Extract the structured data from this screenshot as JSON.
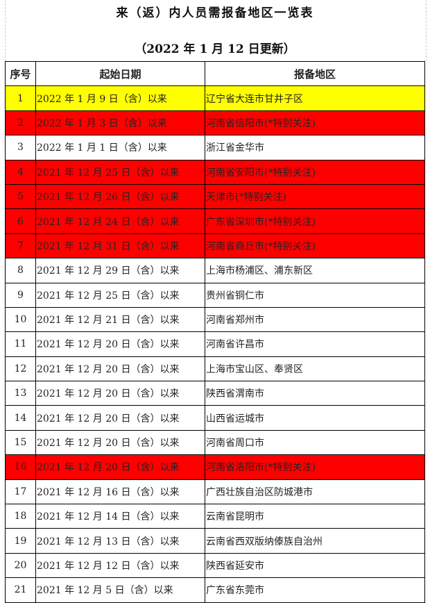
{
  "title": "来（返）内人员需报备地区一览表",
  "subtitle": "（2022 年 1 月 12 日更新）",
  "colors": {
    "yellow": "#ffff00",
    "red": "#ff0000"
  },
  "headers": {
    "no": "序号",
    "date": "起始日期",
    "region": "报备地区"
  },
  "rows": [
    {
      "no": "1",
      "date": "2022 年 1 月 9 日（含）以来",
      "region": "辽宁省大连市甘井子区",
      "highlight": "yellow"
    },
    {
      "no": "2",
      "date": "2022 年 1 月 3 日（含）以来",
      "region": "河南省信阳市(*特别关注)",
      "highlight": "red"
    },
    {
      "no": "3",
      "date": "2022 年 1 月 1 日（含）以来",
      "region": "浙江省金华市",
      "highlight": ""
    },
    {
      "no": "4",
      "date": "2021 年 12 月 25 日（含）以来",
      "region": "河南省安阳市(*特别关注)",
      "highlight": "red"
    },
    {
      "no": "5",
      "date": "2021 年 12 月 26 日（含）以来",
      "region": "天津市(*特别关注)",
      "highlight": "red"
    },
    {
      "no": "6",
      "date": "2021 年 12 月 24 日（含）以来",
      "region": "广东省深圳市(*特别关注)",
      "highlight": "red"
    },
    {
      "no": "7",
      "date": "2021 年 12 月 31 日（含）以来",
      "region": "河南省商丘市(*特别关注)",
      "highlight": "red"
    },
    {
      "no": "8",
      "date": "2021 年 12 月 29 日（含）以来",
      "region": "上海市杨浦区、浦东新区",
      "highlight": ""
    },
    {
      "no": "9",
      "date": "2021 年 12 月 25 日（含）以来",
      "region": "贵州省铜仁市",
      "highlight": ""
    },
    {
      "no": "10",
      "date": "2021 年 12 月 21 日（含）以来",
      "region": "河南省郑州市",
      "highlight": ""
    },
    {
      "no": "11",
      "date": "2021 年 12 月 20 日（含）以来",
      "region": "河南省许昌市",
      "highlight": ""
    },
    {
      "no": "12",
      "date": "2021 年 12 月 20 日（含）以来",
      "region": "上海市宝山区、奉贤区",
      "highlight": ""
    },
    {
      "no": "13",
      "date": "2021 年 12 月 20 日（含）以来",
      "region": "陕西省渭南市",
      "highlight": ""
    },
    {
      "no": "14",
      "date": "2021 年 12 月 20 日（含）以来",
      "region": "山西省运城市",
      "highlight": ""
    },
    {
      "no": "15",
      "date": "2021 年 12 月 20 日（含）以来",
      "region": "河南省周口市",
      "highlight": ""
    },
    {
      "no": "16",
      "date": "2021 年 12 月 20 日（含）以来",
      "region": "河南省洛阳市(*特别关注)",
      "highlight": "red"
    },
    {
      "no": "17",
      "date": "2021 年 12 月 16 日（含）以来",
      "region": "广西壮族自治区防城港市",
      "highlight": ""
    },
    {
      "no": "18",
      "date": "2021 年 12 月 14 日（含）以来",
      "region": "云南省昆明市",
      "highlight": ""
    },
    {
      "no": "19",
      "date": "2021 年 12 月 13 日（含）以来",
      "region": "云南省西双版纳傣族自治州",
      "highlight": ""
    },
    {
      "no": "20",
      "date": "2021 年 12 月 12 日（含）以来",
      "region": "陕西省延安市",
      "highlight": ""
    },
    {
      "no": "21",
      "date": "2021 年 12 月 5 日（含）以来",
      "region": "广东省东莞市",
      "highlight": ""
    }
  ]
}
